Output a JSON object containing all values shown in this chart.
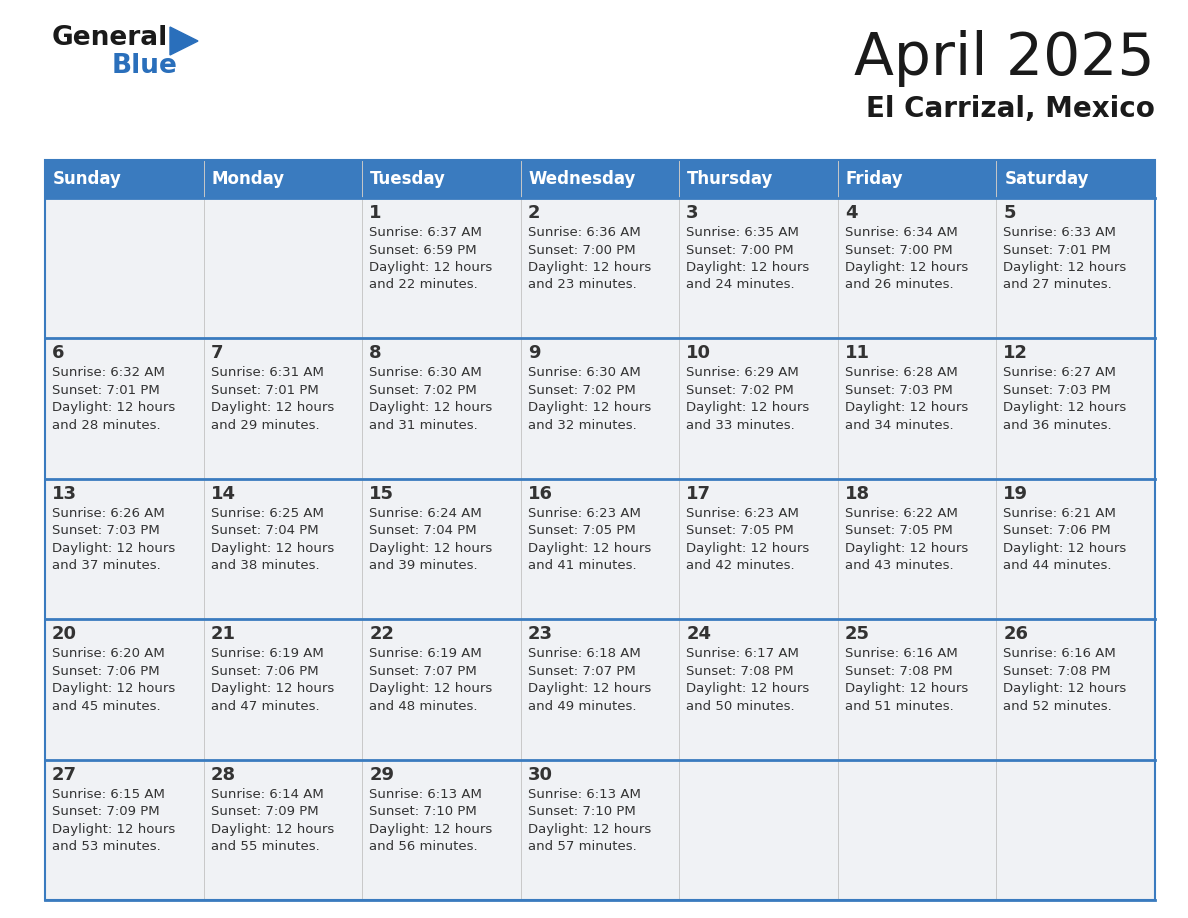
{
  "title": "April 2025",
  "subtitle": "El Carrizal, Mexico",
  "header_bg": "#3a7bbf",
  "header_text": "#ffffff",
  "cell_bg": "#f0f2f5",
  "empty_cell_bg": "#f0f2f5",
  "day_names": [
    "Sunday",
    "Monday",
    "Tuesday",
    "Wednesday",
    "Thursday",
    "Friday",
    "Saturday"
  ],
  "calendar_data": [
    [
      {
        "day": "",
        "sunrise": "",
        "sunset": "",
        "daylight": ""
      },
      {
        "day": "",
        "sunrise": "",
        "sunset": "",
        "daylight": ""
      },
      {
        "day": "1",
        "sunrise": "Sunrise: 6:37 AM",
        "sunset": "Sunset: 6:59 PM",
        "daylight": "Daylight: 12 hours\nand 22 minutes."
      },
      {
        "day": "2",
        "sunrise": "Sunrise: 6:36 AM",
        "sunset": "Sunset: 7:00 PM",
        "daylight": "Daylight: 12 hours\nand 23 minutes."
      },
      {
        "day": "3",
        "sunrise": "Sunrise: 6:35 AM",
        "sunset": "Sunset: 7:00 PM",
        "daylight": "Daylight: 12 hours\nand 24 minutes."
      },
      {
        "day": "4",
        "sunrise": "Sunrise: 6:34 AM",
        "sunset": "Sunset: 7:00 PM",
        "daylight": "Daylight: 12 hours\nand 26 minutes."
      },
      {
        "day": "5",
        "sunrise": "Sunrise: 6:33 AM",
        "sunset": "Sunset: 7:01 PM",
        "daylight": "Daylight: 12 hours\nand 27 minutes."
      }
    ],
    [
      {
        "day": "6",
        "sunrise": "Sunrise: 6:32 AM",
        "sunset": "Sunset: 7:01 PM",
        "daylight": "Daylight: 12 hours\nand 28 minutes."
      },
      {
        "day": "7",
        "sunrise": "Sunrise: 6:31 AM",
        "sunset": "Sunset: 7:01 PM",
        "daylight": "Daylight: 12 hours\nand 29 minutes."
      },
      {
        "day": "8",
        "sunrise": "Sunrise: 6:30 AM",
        "sunset": "Sunset: 7:02 PM",
        "daylight": "Daylight: 12 hours\nand 31 minutes."
      },
      {
        "day": "9",
        "sunrise": "Sunrise: 6:30 AM",
        "sunset": "Sunset: 7:02 PM",
        "daylight": "Daylight: 12 hours\nand 32 minutes."
      },
      {
        "day": "10",
        "sunrise": "Sunrise: 6:29 AM",
        "sunset": "Sunset: 7:02 PM",
        "daylight": "Daylight: 12 hours\nand 33 minutes."
      },
      {
        "day": "11",
        "sunrise": "Sunrise: 6:28 AM",
        "sunset": "Sunset: 7:03 PM",
        "daylight": "Daylight: 12 hours\nand 34 minutes."
      },
      {
        "day": "12",
        "sunrise": "Sunrise: 6:27 AM",
        "sunset": "Sunset: 7:03 PM",
        "daylight": "Daylight: 12 hours\nand 36 minutes."
      }
    ],
    [
      {
        "day": "13",
        "sunrise": "Sunrise: 6:26 AM",
        "sunset": "Sunset: 7:03 PM",
        "daylight": "Daylight: 12 hours\nand 37 minutes."
      },
      {
        "day": "14",
        "sunrise": "Sunrise: 6:25 AM",
        "sunset": "Sunset: 7:04 PM",
        "daylight": "Daylight: 12 hours\nand 38 minutes."
      },
      {
        "day": "15",
        "sunrise": "Sunrise: 6:24 AM",
        "sunset": "Sunset: 7:04 PM",
        "daylight": "Daylight: 12 hours\nand 39 minutes."
      },
      {
        "day": "16",
        "sunrise": "Sunrise: 6:23 AM",
        "sunset": "Sunset: 7:05 PM",
        "daylight": "Daylight: 12 hours\nand 41 minutes."
      },
      {
        "day": "17",
        "sunrise": "Sunrise: 6:23 AM",
        "sunset": "Sunset: 7:05 PM",
        "daylight": "Daylight: 12 hours\nand 42 minutes."
      },
      {
        "day": "18",
        "sunrise": "Sunrise: 6:22 AM",
        "sunset": "Sunset: 7:05 PM",
        "daylight": "Daylight: 12 hours\nand 43 minutes."
      },
      {
        "day": "19",
        "sunrise": "Sunrise: 6:21 AM",
        "sunset": "Sunset: 7:06 PM",
        "daylight": "Daylight: 12 hours\nand 44 minutes."
      }
    ],
    [
      {
        "day": "20",
        "sunrise": "Sunrise: 6:20 AM",
        "sunset": "Sunset: 7:06 PM",
        "daylight": "Daylight: 12 hours\nand 45 minutes."
      },
      {
        "day": "21",
        "sunrise": "Sunrise: 6:19 AM",
        "sunset": "Sunset: 7:06 PM",
        "daylight": "Daylight: 12 hours\nand 47 minutes."
      },
      {
        "day": "22",
        "sunrise": "Sunrise: 6:19 AM",
        "sunset": "Sunset: 7:07 PM",
        "daylight": "Daylight: 12 hours\nand 48 minutes."
      },
      {
        "day": "23",
        "sunrise": "Sunrise: 6:18 AM",
        "sunset": "Sunset: 7:07 PM",
        "daylight": "Daylight: 12 hours\nand 49 minutes."
      },
      {
        "day": "24",
        "sunrise": "Sunrise: 6:17 AM",
        "sunset": "Sunset: 7:08 PM",
        "daylight": "Daylight: 12 hours\nand 50 minutes."
      },
      {
        "day": "25",
        "sunrise": "Sunrise: 6:16 AM",
        "sunset": "Sunset: 7:08 PM",
        "daylight": "Daylight: 12 hours\nand 51 minutes."
      },
      {
        "day": "26",
        "sunrise": "Sunrise: 6:16 AM",
        "sunset": "Sunset: 7:08 PM",
        "daylight": "Daylight: 12 hours\nand 52 minutes."
      }
    ],
    [
      {
        "day": "27",
        "sunrise": "Sunrise: 6:15 AM",
        "sunset": "Sunset: 7:09 PM",
        "daylight": "Daylight: 12 hours\nand 53 minutes."
      },
      {
        "day": "28",
        "sunrise": "Sunrise: 6:14 AM",
        "sunset": "Sunset: 7:09 PM",
        "daylight": "Daylight: 12 hours\nand 55 minutes."
      },
      {
        "day": "29",
        "sunrise": "Sunrise: 6:13 AM",
        "sunset": "Sunset: 7:10 PM",
        "daylight": "Daylight: 12 hours\nand 56 minutes."
      },
      {
        "day": "30",
        "sunrise": "Sunrise: 6:13 AM",
        "sunset": "Sunset: 7:10 PM",
        "daylight": "Daylight: 12 hours\nand 57 minutes."
      },
      {
        "day": "",
        "sunrise": "",
        "sunset": "",
        "daylight": ""
      },
      {
        "day": "",
        "sunrise": "",
        "sunset": "",
        "daylight": ""
      },
      {
        "day": "",
        "sunrise": "",
        "sunset": "",
        "daylight": ""
      }
    ]
  ],
  "logo_color_general": "#1a1a1a",
  "logo_color_blue": "#2a6fbb",
  "logo_triangle_color": "#2a6fbb",
  "cell_text_color": "#333333",
  "divider_color": "#3a7bbf",
  "bg_color": "#ffffff"
}
